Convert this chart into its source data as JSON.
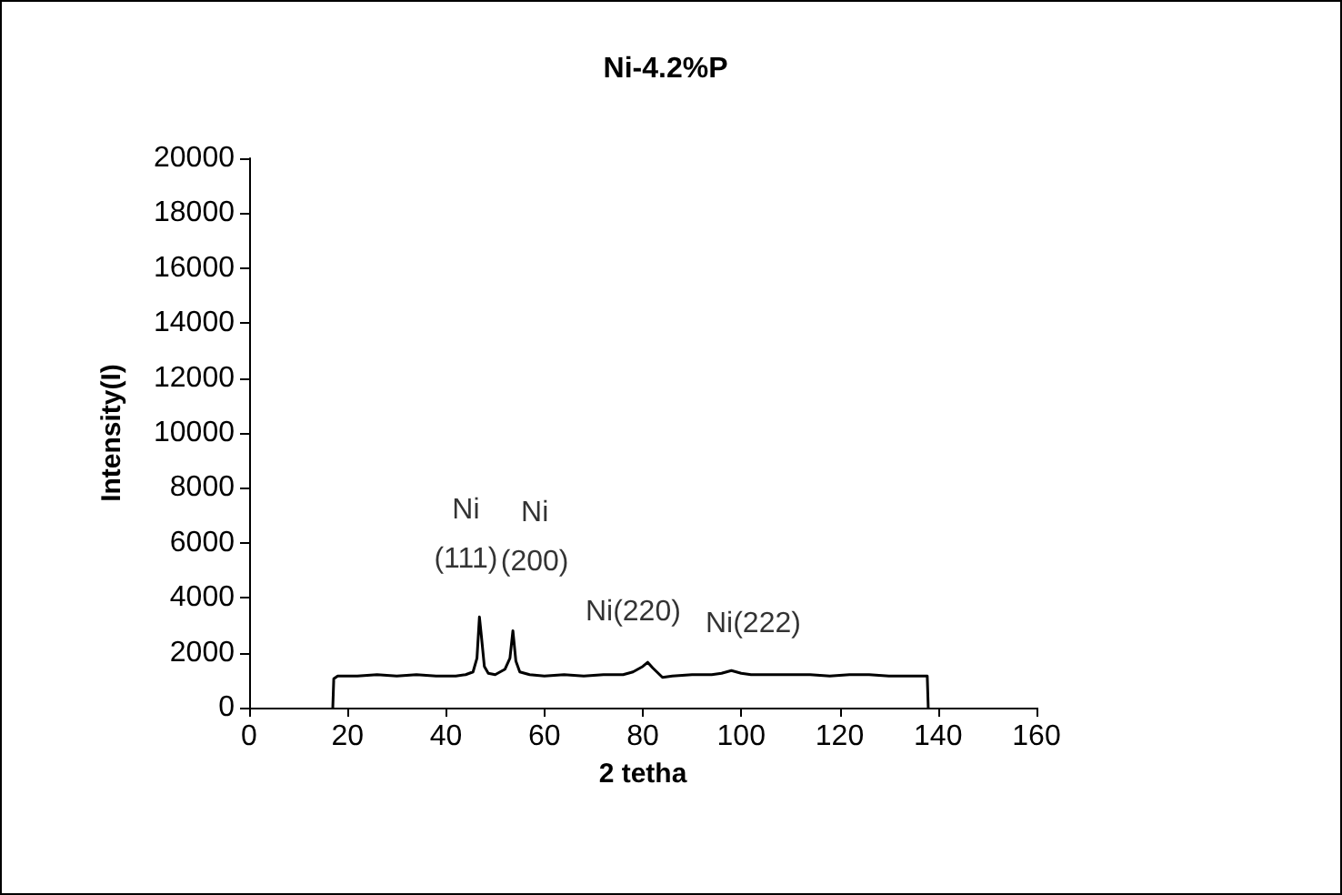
{
  "chart_data": {
    "type": "line",
    "title": "Ni-4.2%P",
    "xlabel": "2 tetha",
    "ylabel": "Intensity(I)",
    "xlim": [
      0,
      160
    ],
    "xticks": [
      0,
      20,
      40,
      60,
      80,
      100,
      120,
      140,
      160
    ],
    "ylim": [
      0,
      20000
    ],
    "yticks": [
      0,
      2000,
      4000,
      6000,
      8000,
      10000,
      12000,
      14000,
      16000,
      18000,
      20000
    ],
    "grid": false,
    "marker": "none",
    "line_style": "solid",
    "series": [
      {
        "color": "#000000",
        "x": [
          17,
          17.2,
          18,
          22,
          26,
          30,
          34,
          38,
          42,
          44,
          45.5,
          46.3,
          46.8,
          47.2,
          47.8,
          48.6,
          50,
          52,
          53,
          53.6,
          54.2,
          55,
          57,
          60,
          64,
          68,
          72,
          76,
          78,
          80,
          81,
          82,
          84,
          86,
          90,
          94,
          96,
          98,
          100,
          102,
          106,
          110,
          114,
          118,
          122,
          126,
          130,
          134,
          137.8,
          138
        ],
        "values": [
          0,
          1050,
          1150,
          1150,
          1200,
          1150,
          1200,
          1150,
          1150,
          1200,
          1300,
          1800,
          3300,
          2600,
          1500,
          1250,
          1200,
          1400,
          1800,
          2800,
          1700,
          1300,
          1200,
          1150,
          1200,
          1150,
          1200,
          1200,
          1300,
          1500,
          1650,
          1450,
          1100,
          1150,
          1200,
          1200,
          1250,
          1350,
          1250,
          1200,
          1200,
          1200,
          1200,
          1150,
          1200,
          1200,
          1150,
          1150,
          1150,
          0
        ]
      }
    ],
    "annotations": [
      {
        "text": "Ni\n(111)",
        "x": 47,
        "y": 3300
      },
      {
        "text": "Ni\n(200)",
        "x": 53.6,
        "y": 2800
      },
      {
        "text": "Ni(220)",
        "x": 81,
        "y": 1650
      },
      {
        "text": "Ni(222)",
        "x": 98,
        "y": 1350
      }
    ]
  }
}
